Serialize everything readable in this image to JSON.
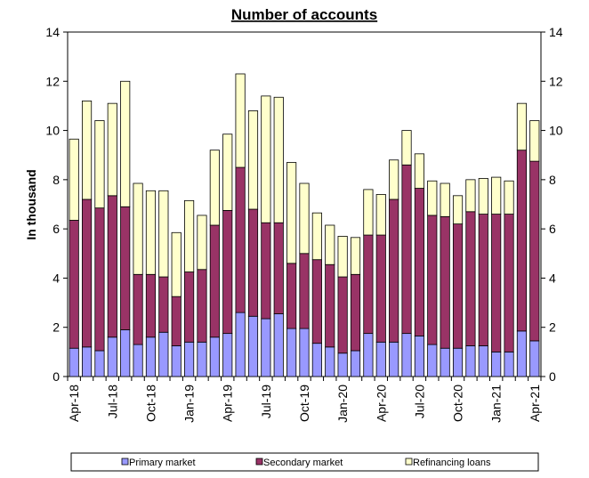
{
  "chart_data": {
    "type": "bar",
    "stacked": true,
    "title": "Number of accounts",
    "ylabel": "In thousand",
    "ylim": [
      0,
      14
    ],
    "yticks": [
      0,
      2,
      4,
      6,
      8,
      10,
      12,
      14
    ],
    "secondary_axis": true,
    "categories": [
      "Apr-18",
      "May-18",
      "Jun-18",
      "Jul-18",
      "Aug-18",
      "Sep-18",
      "Oct-18",
      "Nov-18",
      "Dec-18",
      "Jan-19",
      "Feb-19",
      "Mar-19",
      "Apr-19",
      "May-19",
      "Jun-19",
      "Jul-19",
      "Aug-19",
      "Sep-19",
      "Oct-19",
      "Nov-19",
      "Dec-19",
      "Jan-20",
      "Feb-20",
      "Mar-20",
      "Apr-20",
      "May-20",
      "Jun-20",
      "Jul-20",
      "Aug-20",
      "Sep-20",
      "Oct-20",
      "Nov-20",
      "Dec-20",
      "Jan-21",
      "Feb-21",
      "Mar-21",
      "Apr-21"
    ],
    "visible_tick_labels": [
      "Apr-18",
      "Jul-18",
      "Oct-18",
      "Jan-19",
      "Apr-19",
      "Jul-19",
      "Oct-19",
      "Jan-20",
      "Apr-20",
      "Jul-20",
      "Oct-20",
      "Jan-21",
      "Apr-21"
    ],
    "legend_position": "bottom",
    "series": [
      {
        "name": "Primary market",
        "color": "#9999ff",
        "values": [
          1.15,
          1.2,
          1.05,
          1.6,
          1.9,
          1.3,
          1.6,
          1.8,
          1.25,
          1.4,
          1.4,
          1.6,
          1.75,
          2.6,
          2.45,
          2.35,
          2.55,
          1.95,
          1.95,
          1.35,
          1.2,
          0.95,
          1.05,
          1.75,
          1.4,
          1.4,
          1.75,
          1.65,
          1.3,
          1.15,
          1.15,
          1.25,
          1.25,
          1.0,
          1.0,
          1.85,
          1.45
        ]
      },
      {
        "name": "Secondary market",
        "color": "#993366",
        "values": [
          5.2,
          6.0,
          5.8,
          5.75,
          5.0,
          2.85,
          2.55,
          2.25,
          2.0,
          2.85,
          2.95,
          4.55,
          5.0,
          5.9,
          4.35,
          3.9,
          3.7,
          2.65,
          3.05,
          3.4,
          3.35,
          3.1,
          3.1,
          4.0,
          4.35,
          5.8,
          6.85,
          6.0,
          5.25,
          5.35,
          5.05,
          5.45,
          5.35,
          5.6,
          5.6,
          7.35,
          7.3
        ]
      },
      {
        "name": "Refinancing loans",
        "color": "#ffffcc",
        "values": [
          3.3,
          4.0,
          3.55,
          3.75,
          5.1,
          3.7,
          3.4,
          3.5,
          2.6,
          2.9,
          2.2,
          3.05,
          3.1,
          3.8,
          4.0,
          5.15,
          5.1,
          4.1,
          2.85,
          1.9,
          1.6,
          1.65,
          1.5,
          1.85,
          1.65,
          1.6,
          1.4,
          1.4,
          1.4,
          1.35,
          1.15,
          1.3,
          1.45,
          1.5,
          1.35,
          1.9,
          1.65
        ]
      }
    ]
  }
}
